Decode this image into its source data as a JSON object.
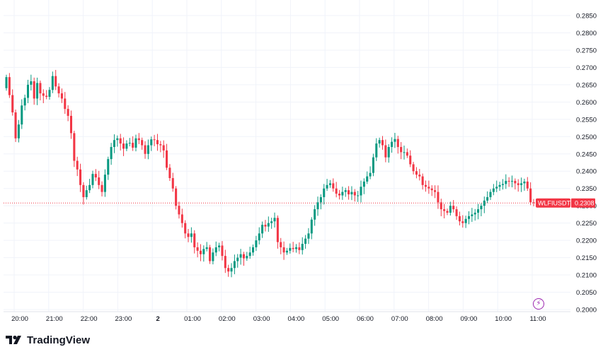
{
  "colors": {
    "up": "#089981",
    "down": "#f23645",
    "grid": "#f0f3fa",
    "text": "#131722",
    "brand": "#131722",
    "event": "#9c27b0"
  },
  "brand": {
    "name": "TradingView"
  },
  "event_marker": {
    "icon": "lightning-icon"
  },
  "price_tag": {
    "symbol": "WLFIUSDT",
    "price": "0.2308"
  },
  "chart_data": {
    "type": "candlestick",
    "symbol": "WLFIUSDT",
    "last_price": 0.2308,
    "y_axis": {
      "ticks": [
        "0.2850",
        "0.2800",
        "0.2750",
        "0.2700",
        "0.2650",
        "0.2600",
        "0.2550",
        "0.2500",
        "0.2450",
        "0.2400",
        "0.2350",
        "0.2300",
        "0.2250",
        "0.2200",
        "0.2150",
        "0.2100",
        "0.2050",
        "0.2000"
      ],
      "ylim": [
        0.2,
        0.285
      ]
    },
    "x_axis": {
      "ticks": [
        "20:00",
        "21:00",
        "22:00",
        "23:00",
        "2",
        "01:00",
        "02:00",
        "03:00",
        "04:00",
        "05:00",
        "06:00",
        "07:00",
        "08:00",
        "09:00",
        "10:00",
        "11:00"
      ],
      "bold_ticks": [
        "2"
      ]
    },
    "grid": true,
    "candle_interval": "5m",
    "closes": [
      0.2672,
      0.262,
      0.257,
      0.2495,
      0.2535,
      0.259,
      0.2612,
      0.265,
      0.266,
      0.261,
      0.2655,
      0.2625,
      0.2618,
      0.2615,
      0.2635,
      0.2675,
      0.2645,
      0.2625,
      0.261,
      0.258,
      0.256,
      0.251,
      0.243,
      0.2405,
      0.236,
      0.2325,
      0.2345,
      0.236,
      0.2392,
      0.2382,
      0.236,
      0.234,
      0.239,
      0.2435,
      0.247,
      0.249,
      0.2495,
      0.248,
      0.2465,
      0.248,
      0.2482,
      0.2468,
      0.2495,
      0.249,
      0.2475,
      0.245,
      0.2475,
      0.2492,
      0.249,
      0.2478,
      0.2475,
      0.246,
      0.241,
      0.238,
      0.235,
      0.23,
      0.2275,
      0.225,
      0.222,
      0.221,
      0.222,
      0.218,
      0.217,
      0.216,
      0.2175,
      0.218,
      0.214,
      0.2165,
      0.218,
      0.2185,
      0.2155,
      0.212,
      0.211,
      0.212,
      0.214,
      0.215,
      0.216,
      0.2148,
      0.2155,
      0.2165,
      0.218,
      0.22,
      0.222,
      0.2245,
      0.224,
      0.225,
      0.2255,
      0.2265,
      0.2195,
      0.218,
      0.2165,
      0.217,
      0.2178,
      0.2175,
      0.218,
      0.2172,
      0.219,
      0.2205,
      0.222,
      0.226,
      0.229,
      0.231,
      0.2325,
      0.235,
      0.236,
      0.2365,
      0.235,
      0.2335,
      0.233,
      0.234,
      0.2345,
      0.2333,
      0.234,
      0.233,
      0.233,
      0.2355,
      0.237,
      0.2385,
      0.2395,
      0.244,
      0.248,
      0.249,
      0.2475,
      0.244,
      0.247,
      0.2485,
      0.2493,
      0.247,
      0.2455,
      0.2455,
      0.2445,
      0.242,
      0.24,
      0.239,
      0.2385,
      0.236,
      0.2355,
      0.235,
      0.2345,
      0.234,
      0.231,
      0.229,
      0.2285,
      0.228,
      0.23,
      0.229,
      0.227,
      0.2255,
      0.225,
      0.2262,
      0.227,
      0.2275,
      0.228,
      0.229,
      0.23,
      0.2315,
      0.2325,
      0.234,
      0.235,
      0.2355,
      0.236,
      0.2363,
      0.2372,
      0.237,
      0.2372,
      0.2365,
      0.236,
      0.2365,
      0.237,
      0.235,
      0.231,
      0.2308
    ]
  }
}
